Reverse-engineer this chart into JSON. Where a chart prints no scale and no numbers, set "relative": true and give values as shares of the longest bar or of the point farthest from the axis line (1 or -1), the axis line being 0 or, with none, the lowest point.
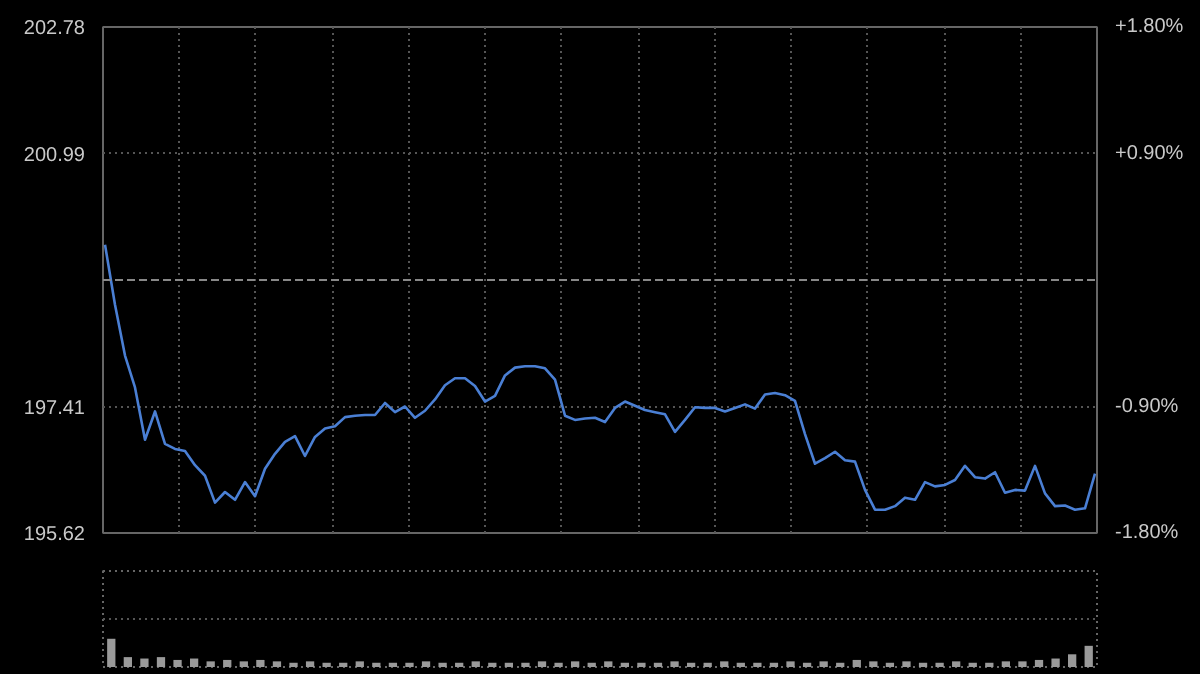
{
  "chart_data": [
    {
      "type": "line",
      "ylim": [
        195.62,
        202.78
      ],
      "y2lim": [
        -1.8,
        1.8
      ],
      "categories": [
        null,
        null,
        null,
        null,
        null,
        null,
        null,
        null,
        null,
        null,
        null,
        null,
        null,
        null,
        null,
        null,
        null,
        null,
        null,
        null,
        null,
        null,
        null,
        null,
        null,
        null,
        null,
        null,
        null,
        null,
        null,
        null,
        null,
        null,
        null,
        null,
        null,
        null,
        null,
        null,
        null,
        null,
        null,
        null,
        null,
        null,
        null,
        null,
        null,
        null,
        null,
        null,
        null,
        null,
        null,
        null,
        null,
        null,
        null,
        null,
        null,
        null,
        null,
        null,
        null,
        null,
        null,
        null,
        null,
        null,
        null,
        null,
        null,
        null,
        null,
        null,
        null,
        null,
        null,
        null,
        null,
        null,
        null,
        null,
        null,
        null,
        null,
        null,
        null,
        null,
        null,
        null,
        null,
        null,
        null,
        null,
        null,
        null,
        null,
        null
      ],
      "yticks": [
        202.78,
        200.99,
        197.41,
        195.62
      ],
      "y2ticks": [
        {
          "value": 1.8,
          "label": "+1.80%"
        },
        {
          "value": 0.9,
          "label": "+0.90%"
        },
        {
          "value": -0.9,
          "label": "-0.90%"
        },
        {
          "value": -1.8,
          "label": "-1.80%"
        }
      ],
      "grid": true,
      "ref_lines": [
        {
          "axis": "y",
          "value": 199.2,
          "label": null,
          "color": "#888888",
          "line_style": "dashed"
        }
      ],
      "series": [
        {
          "color": "#4a7fd4",
          "values": [
            199.7,
            198.85,
            198.13,
            197.68,
            196.94,
            197.34,
            196.88,
            196.81,
            196.78,
            196.58,
            196.43,
            196.05,
            196.2,
            196.09,
            196.34,
            196.14,
            196.53,
            196.74,
            196.91,
            196.99,
            196.71,
            196.98,
            197.1,
            197.13,
            197.26,
            197.28,
            197.29,
            197.29,
            197.46,
            197.33,
            197.41,
            197.25,
            197.35,
            197.51,
            197.71,
            197.81,
            197.81,
            197.7,
            197.48,
            197.56,
            197.85,
            197.96,
            197.98,
            197.98,
            197.95,
            197.79,
            197.28,
            197.22,
            197.24,
            197.25,
            197.19,
            197.39,
            197.48,
            197.42,
            197.36,
            197.33,
            197.3,
            197.05,
            197.22,
            197.4,
            197.39,
            197.39,
            197.34,
            197.39,
            197.44,
            197.38,
            197.58,
            197.6,
            197.57,
            197.49,
            197.02,
            196.6,
            196.68,
            196.77,
            196.65,
            196.63,
            196.23,
            195.95,
            195.95,
            196.0,
            196.12,
            196.09,
            196.34,
            196.28,
            196.3,
            196.37,
            196.57,
            196.41,
            196.39,
            196.48,
            196.19,
            196.23,
            196.22,
            196.57,
            196.18,
            196.0,
            196.01,
            195.95,
            195.97,
            196.46
          ]
        }
      ]
    },
    {
      "type": "bar",
      "relative": true,
      "grid": true,
      "color": "#9a9a9a",
      "categories": [
        null,
        null,
        null,
        null,
        null,
        null,
        null,
        null,
        null,
        null,
        null,
        null,
        null,
        null,
        null,
        null,
        null,
        null,
        null,
        null,
        null,
        null,
        null,
        null,
        null,
        null,
        null,
        null,
        null,
        null,
        null,
        null,
        null,
        null,
        null,
        null,
        null,
        null,
        null,
        null,
        null,
        null,
        null,
        null,
        null,
        null,
        null,
        null,
        null,
        null,
        null,
        null,
        null,
        null,
        null,
        null,
        null,
        null,
        null,
        null
      ],
      "values": [
        1.0,
        0.35,
        0.3,
        0.35,
        0.25,
        0.3,
        0.2,
        0.25,
        0.2,
        0.25,
        0.2,
        0.15,
        0.2,
        0.15,
        0.15,
        0.2,
        0.15,
        0.15,
        0.15,
        0.2,
        0.15,
        0.15,
        0.2,
        0.15,
        0.15,
        0.15,
        0.2,
        0.15,
        0.2,
        0.15,
        0.2,
        0.15,
        0.15,
        0.15,
        0.2,
        0.15,
        0.15,
        0.2,
        0.15,
        0.15,
        0.15,
        0.2,
        0.15,
        0.2,
        0.15,
        0.25,
        0.2,
        0.15,
        0.2,
        0.15,
        0.15,
        0.2,
        0.15,
        0.15,
        0.2,
        0.2,
        0.25,
        0.3,
        0.45,
        0.75
      ]
    }
  ]
}
